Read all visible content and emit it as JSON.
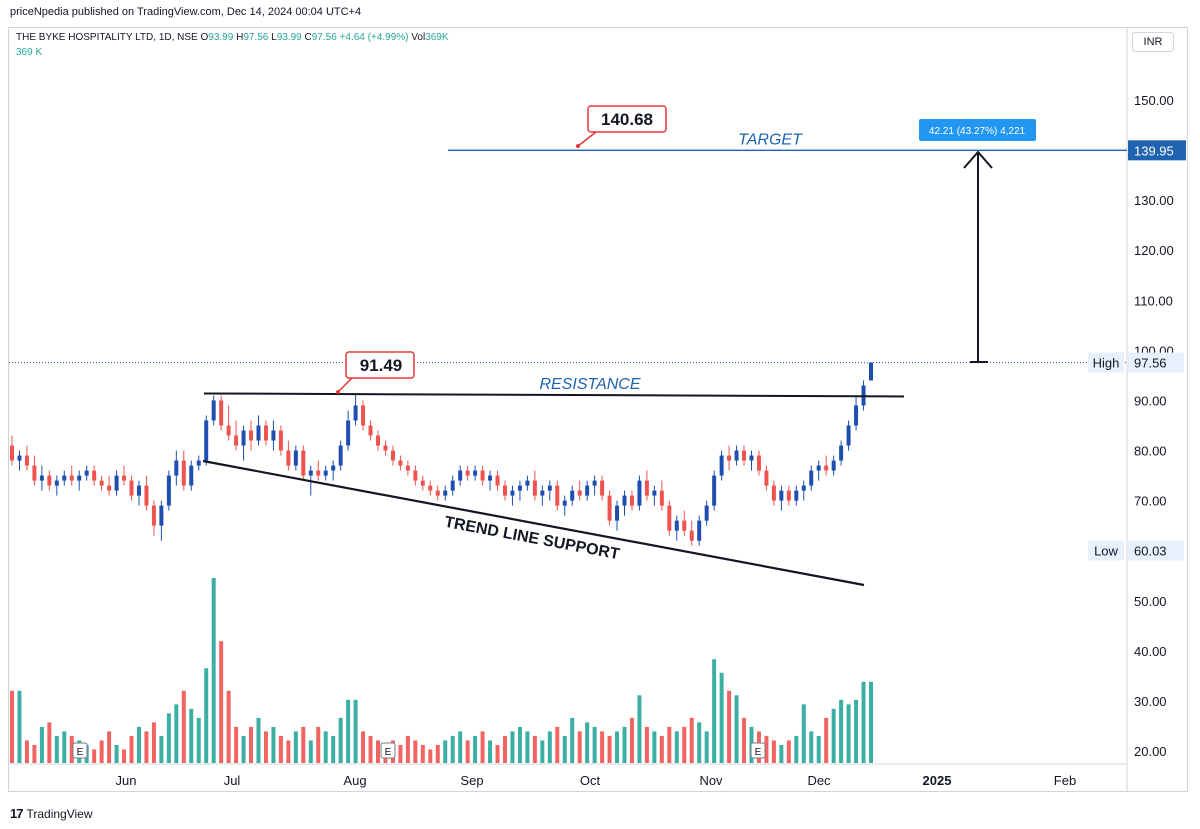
{
  "header": {
    "publisher": "priceNpedia published on TradingView.com, Dec 14, 2024 00:04 UTC+4"
  },
  "legend": {
    "symbol": "THE BYKE HOSPITALITY LTD, 1D, NSE",
    "o_label": "O",
    "o": "93.99",
    "h_label": "H",
    "h": "97.56",
    "l_label": "L",
    "l": "93.99",
    "c_label": "C",
    "c": "97.56",
    "change": "+4.64 (+4.99%)",
    "vol_label": "Vol",
    "vol": "369K",
    "vol_wrap": "369 K"
  },
  "currency": "INR",
  "footer": {
    "logo": "17",
    "brand": "TradingView"
  },
  "chart_data": {
    "type": "candlestick",
    "y_axis": {
      "ticks": [
        "150.00",
        "140.00",
        "130.00",
        "120.00",
        "110.00",
        "100.00",
        "90.00",
        "80.00",
        "70.00",
        "60.00",
        "50.00",
        "40.00",
        "30.00",
        "20.00"
      ],
      "range": [
        20,
        150
      ]
    },
    "x_axis": {
      "ticks": [
        "Jun",
        "Jul",
        "Aug",
        "Sep",
        "Oct",
        "Nov",
        "Dec",
        "2025",
        "Feb"
      ],
      "bold_tick": "2025"
    },
    "price_labels": [
      {
        "text": "139.95",
        "value": 139.95,
        "style": "blue"
      },
      {
        "name": "High",
        "text": "97.56",
        "value": 97.56
      },
      {
        "name": "Low",
        "text": "60.03",
        "value": 60.03
      }
    ],
    "annotations": {
      "target_label": "TARGET",
      "target_value": "140.68",
      "resistance_label": "RESISTANCE",
      "resistance_value": "91.49",
      "support_label": "TREND LINE SUPPORT",
      "measure_label": "42.21 (43.27%) 4,221"
    },
    "earnings_marker": "E",
    "candles": [
      [
        81,
        83,
        77,
        78
      ],
      [
        78,
        80,
        76,
        79
      ],
      [
        79,
        81,
        76,
        77
      ],
      [
        77,
        79,
        73,
        74
      ],
      [
        74,
        77,
        72,
        75
      ],
      [
        75,
        76,
        72,
        73
      ],
      [
        73,
        75,
        71,
        74
      ],
      [
        74,
        76,
        73,
        75
      ],
      [
        75,
        77,
        73,
        74
      ],
      [
        74,
        76,
        72,
        75
      ],
      [
        75,
        77,
        74,
        76
      ],
      [
        76,
        77,
        73,
        74
      ],
      [
        74,
        75,
        72,
        73
      ],
      [
        73,
        75,
        71,
        72
      ],
      [
        72,
        76,
        71,
        75
      ],
      [
        75,
        77,
        73,
        74
      ],
      [
        74,
        75,
        70,
        71
      ],
      [
        71,
        74,
        69,
        73
      ],
      [
        73,
        75,
        68,
        69
      ],
      [
        69,
        70,
        63,
        65
      ],
      [
        65,
        70,
        62,
        69
      ],
      [
        69,
        76,
        68,
        75
      ],
      [
        75,
        80,
        73,
        78
      ],
      [
        78,
        80,
        72,
        73
      ],
      [
        73,
        78,
        72,
        77
      ],
      [
        77,
        79,
        76,
        78
      ],
      [
        78,
        87,
        77,
        86
      ],
      [
        86,
        91,
        85,
        90
      ],
      [
        90,
        91,
        84,
        85
      ],
      [
        85,
        89,
        82,
        83
      ],
      [
        83,
        86,
        80,
        81
      ],
      [
        81,
        85,
        78,
        84
      ],
      [
        84,
        86,
        80,
        82
      ],
      [
        82,
        87,
        81,
        85
      ],
      [
        85,
        86,
        81,
        82
      ],
      [
        82,
        86,
        80,
        84
      ],
      [
        84,
        85,
        79,
        80
      ],
      [
        80,
        82,
        76,
        77
      ],
      [
        77,
        81,
        76,
        80
      ],
      [
        80,
        81,
        74,
        75
      ],
      [
        75,
        77,
        71,
        76
      ],
      [
        76,
        78,
        74,
        75
      ],
      [
        75,
        77,
        74,
        76
      ],
      [
        76,
        78,
        74,
        77
      ],
      [
        77,
        82,
        76,
        81
      ],
      [
        81,
        88,
        80,
        86
      ],
      [
        86,
        91.5,
        85,
        89
      ],
      [
        89,
        90,
        84,
        85
      ],
      [
        85,
        86,
        82,
        83
      ],
      [
        83,
        84,
        80,
        81
      ],
      [
        81,
        82,
        79,
        80
      ],
      [
        80,
        81,
        77,
        78
      ],
      [
        78,
        79,
        76,
        77
      ],
      [
        77,
        78,
        75,
        76
      ],
      [
        76,
        77,
        73,
        74
      ],
      [
        74,
        75,
        72,
        73
      ],
      [
        73,
        74,
        71,
        72
      ],
      [
        72,
        73,
        70,
        71
      ],
      [
        71,
        73,
        70,
        72
      ],
      [
        72,
        75,
        71,
        74
      ],
      [
        74,
        77,
        73,
        76
      ],
      [
        76,
        77,
        74,
        75
      ],
      [
        75,
        77,
        74,
        76
      ],
      [
        76,
        77,
        73,
        74
      ],
      [
        74,
        76,
        72,
        75
      ],
      [
        75,
        76,
        72,
        73
      ],
      [
        73,
        74,
        70,
        71
      ],
      [
        71,
        73,
        69,
        72
      ],
      [
        72,
        74,
        70,
        73
      ],
      [
        73,
        75,
        72,
        74
      ],
      [
        74,
        76,
        70,
        71
      ],
      [
        71,
        73,
        69,
        72
      ],
      [
        72,
        74,
        70,
        73
      ],
      [
        73,
        74,
        68,
        69
      ],
      [
        69,
        71,
        67,
        70
      ],
      [
        70,
        73,
        69,
        72
      ],
      [
        72,
        74,
        70,
        71
      ],
      [
        71,
        74,
        70,
        73
      ],
      [
        73,
        75,
        71,
        74
      ],
      [
        74,
        75,
        70,
        71
      ],
      [
        71,
        72,
        65,
        66
      ],
      [
        66,
        70,
        64,
        69
      ],
      [
        69,
        72,
        67,
        71
      ],
      [
        71,
        72,
        68,
        69
      ],
      [
        69,
        75,
        68,
        74
      ],
      [
        74,
        76,
        70,
        71
      ],
      [
        71,
        73,
        69,
        72
      ],
      [
        72,
        74,
        68,
        69
      ],
      [
        69,
        70,
        63,
        64
      ],
      [
        64,
        67,
        62,
        66
      ],
      [
        66,
        68,
        63,
        64
      ],
      [
        64,
        66,
        61,
        62
      ],
      [
        62,
        67,
        61,
        66
      ],
      [
        66,
        70,
        65,
        69
      ],
      [
        69,
        76,
        68,
        75
      ],
      [
        75,
        80,
        74,
        79
      ],
      [
        79,
        81,
        76,
        78
      ],
      [
        78,
        81,
        77,
        80
      ],
      [
        80,
        81,
        77,
        78
      ],
      [
        78,
        80,
        76,
        79
      ],
      [
        79,
        80,
        75,
        76
      ],
      [
        76,
        77,
        72,
        73
      ],
      [
        73,
        74,
        69,
        70
      ],
      [
        70,
        73,
        68,
        72
      ],
      [
        72,
        73,
        69,
        70
      ],
      [
        70,
        73,
        69,
        72
      ],
      [
        72,
        74,
        70,
        73
      ],
      [
        73,
        77,
        72,
        76
      ],
      [
        76,
        78,
        74,
        77
      ],
      [
        77,
        79,
        75,
        76
      ],
      [
        76,
        79,
        75,
        78
      ],
      [
        78,
        82,
        77,
        81
      ],
      [
        81,
        86,
        80,
        85
      ],
      [
        85,
        91,
        84,
        89
      ],
      [
        89,
        94,
        88,
        93
      ],
      [
        93.99,
        97.56,
        93.99,
        97.56
      ]
    ],
    "volume": [
      30,
      30,
      19,
      18,
      22,
      23,
      20,
      21,
      20,
      19,
      18,
      17,
      19,
      21,
      18,
      17,
      20,
      22,
      21,
      23,
      20,
      25,
      27,
      30,
      26,
      24,
      35,
      55,
      41,
      30,
      22,
      20,
      22,
      24,
      21,
      22,
      20,
      19,
      21,
      22,
      19,
      22,
      21,
      20,
      24,
      28,
      28,
      21,
      20,
      19,
      18,
      19,
      18,
      20,
      19,
      18,
      17,
      18,
      19,
      20,
      21,
      19,
      20,
      21,
      19,
      18,
      20,
      21,
      22,
      21,
      20,
      19,
      21,
      22,
      20,
      24,
      21,
      23,
      22,
      21,
      20,
      21,
      22,
      24,
      29,
      22,
      21,
      20,
      22,
      21,
      22,
      24,
      23,
      21,
      37,
      34,
      30,
      29,
      24,
      22,
      21,
      20,
      19,
      18,
      19,
      20,
      27,
      21,
      20,
      24,
      26,
      28,
      27,
      28,
      32,
      32
    ]
  }
}
